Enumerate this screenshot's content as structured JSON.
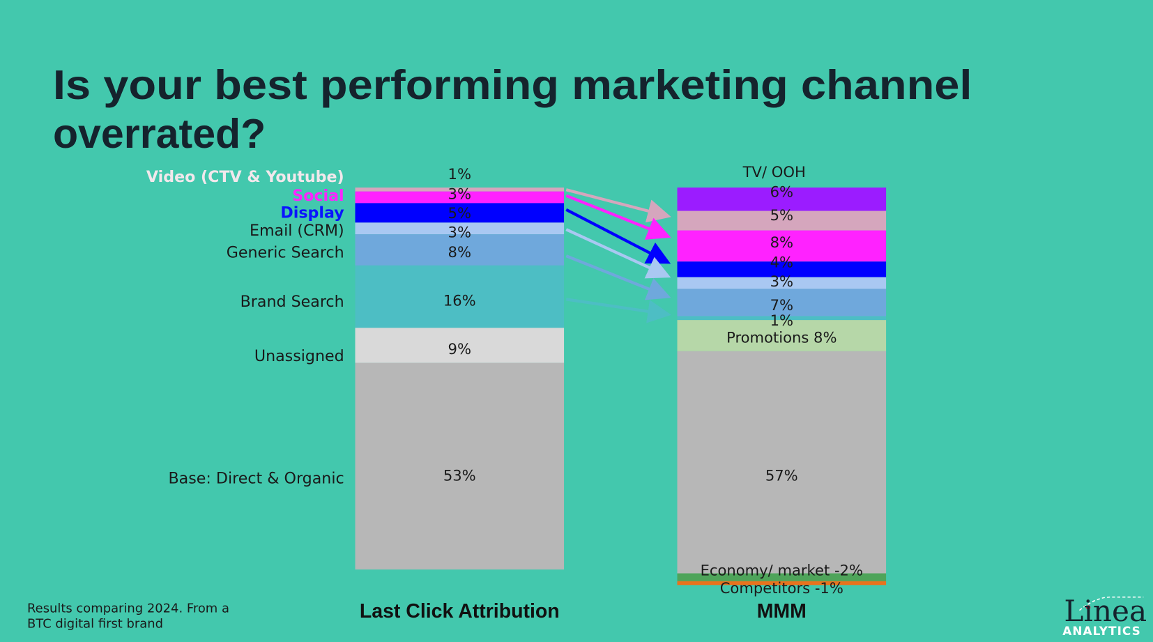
{
  "title_lines": [
    "Is your best performing marketing channel",
    "overrated?"
  ],
  "chart_data": {
    "type": "bar",
    "categories": [
      "Last Click Attribution",
      "MMM"
    ],
    "bars": [
      {
        "names": [
          "Video (CTV & Youtube)",
          "Social",
          "Display",
          "Email (CRM)",
          "Generic Search",
          "Brand Search",
          "Unassigned",
          "Base: Direct & Organic"
        ],
        "name_colors": [
          "#f2e8ec",
          "#ff22ff",
          "#0a14ff",
          "#1a1a1a",
          "#1a1a1a",
          "#1a1a1a",
          "#1a1a1a",
          "#1a1a1a"
        ],
        "values": [
          1,
          3,
          5,
          3,
          8,
          16,
          9,
          53
        ],
        "value_labels": [
          "1%",
          "3%",
          "5%",
          "3%",
          "8%",
          "16%",
          "9%",
          "53%"
        ],
        "colors": [
          "#d5a6bd",
          "#ff22ff",
          "#0000ff",
          "#a9c8f2",
          "#6fa8dc",
          "#4dbec4",
          "#d9d9d9",
          "#b7b7b7"
        ]
      },
      {
        "top_label": "TV/ OOH",
        "values": [
          6,
          5,
          8,
          4,
          3,
          7,
          1,
          8,
          57,
          -2,
          -1
        ],
        "value_labels": [
          "6%",
          "5%",
          "8%",
          "4%",
          "3%",
          "7%",
          "1%",
          "Promotions 8%",
          "57%",
          "Economy/ market -2%",
          "Competitors -1%"
        ],
        "colors": [
          "#9b1cff",
          "#d5a6bd",
          "#ff22ff",
          "#0000ff",
          "#a9c8f2",
          "#6fa8dc",
          "#4dbec4",
          "#b6d7a8",
          "#b7b7b7",
          "#4ea45a",
          "#e8731e"
        ]
      }
    ]
  },
  "footnote": [
    "Results comparing 2024. From a",
    "BTC digital first brand"
  ],
  "logo": {
    "name": "Linea",
    "subtitle": "ANALYTICS"
  }
}
